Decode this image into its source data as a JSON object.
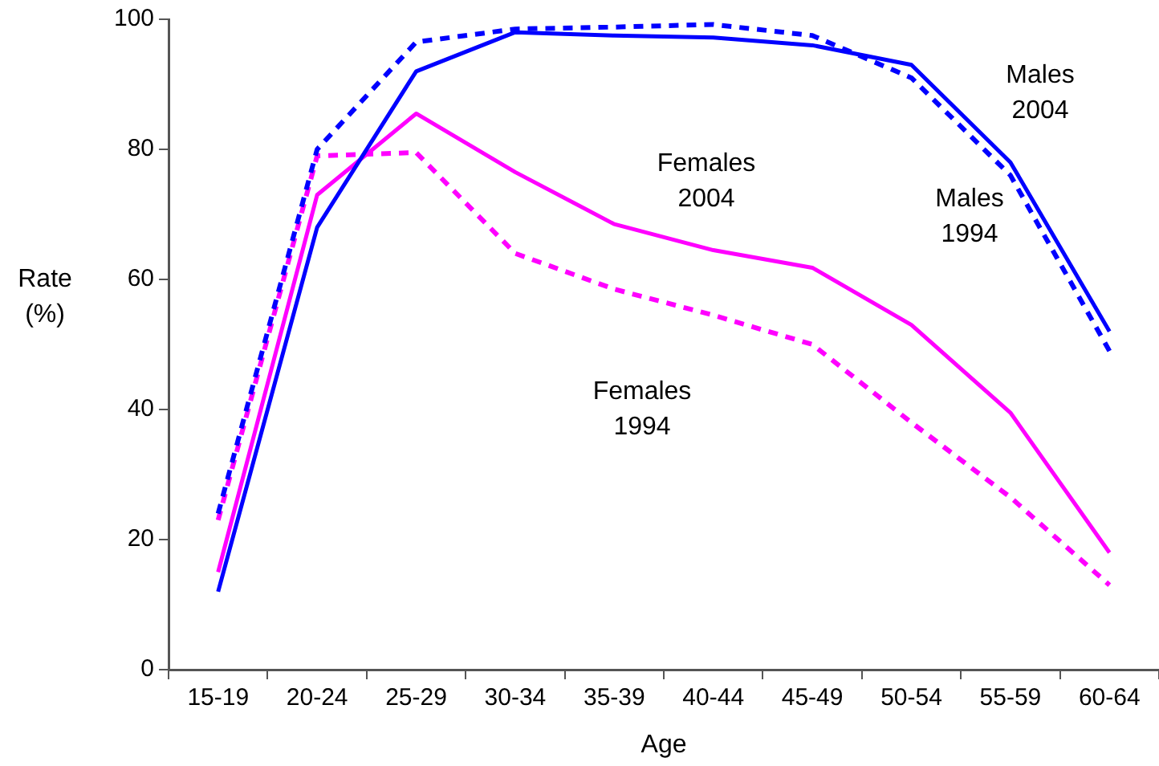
{
  "chart_data": {
    "type": "line",
    "xlabel": "Age",
    "ylabel": "Rate\n(%)",
    "categories": [
      "15-19",
      "20-24",
      "25-29",
      "30-34",
      "35-39",
      "40-44",
      "45-49",
      "50-54",
      "55-59",
      "60-64"
    ],
    "series": [
      {
        "color": "#0000ff",
        "line_style": "solid",
        "values": [
          12,
          68,
          92,
          98,
          97.5,
          97.2,
          96,
          93,
          78,
          52
        ]
      },
      {
        "color": "#0000ff",
        "line_style": "dashed",
        "values": [
          24,
          80,
          96.5,
          98.5,
          98.8,
          99.2,
          97.5,
          91,
          76,
          49
        ]
      },
      {
        "color": "#ff00ff",
        "line_style": "solid",
        "values": [
          15,
          73,
          85.5,
          76.5,
          68.5,
          64.5,
          61.8,
          53,
          39.5,
          18
        ]
      },
      {
        "color": "#ff00ff",
        "line_style": "dashed",
        "values": [
          23,
          79,
          79.5,
          64,
          58.5,
          54.5,
          50,
          38,
          26.5,
          13
        ]
      }
    ],
    "annotations": [
      "Males\n2004",
      "Males\n1994",
      "Females\n2004",
      "Females\n1994"
    ],
    "ylim": [
      0,
      100
    ],
    "yticks": [
      0,
      20,
      40,
      60,
      80,
      100
    ],
    "grid": false,
    "legend": false,
    "marker": "none"
  }
}
